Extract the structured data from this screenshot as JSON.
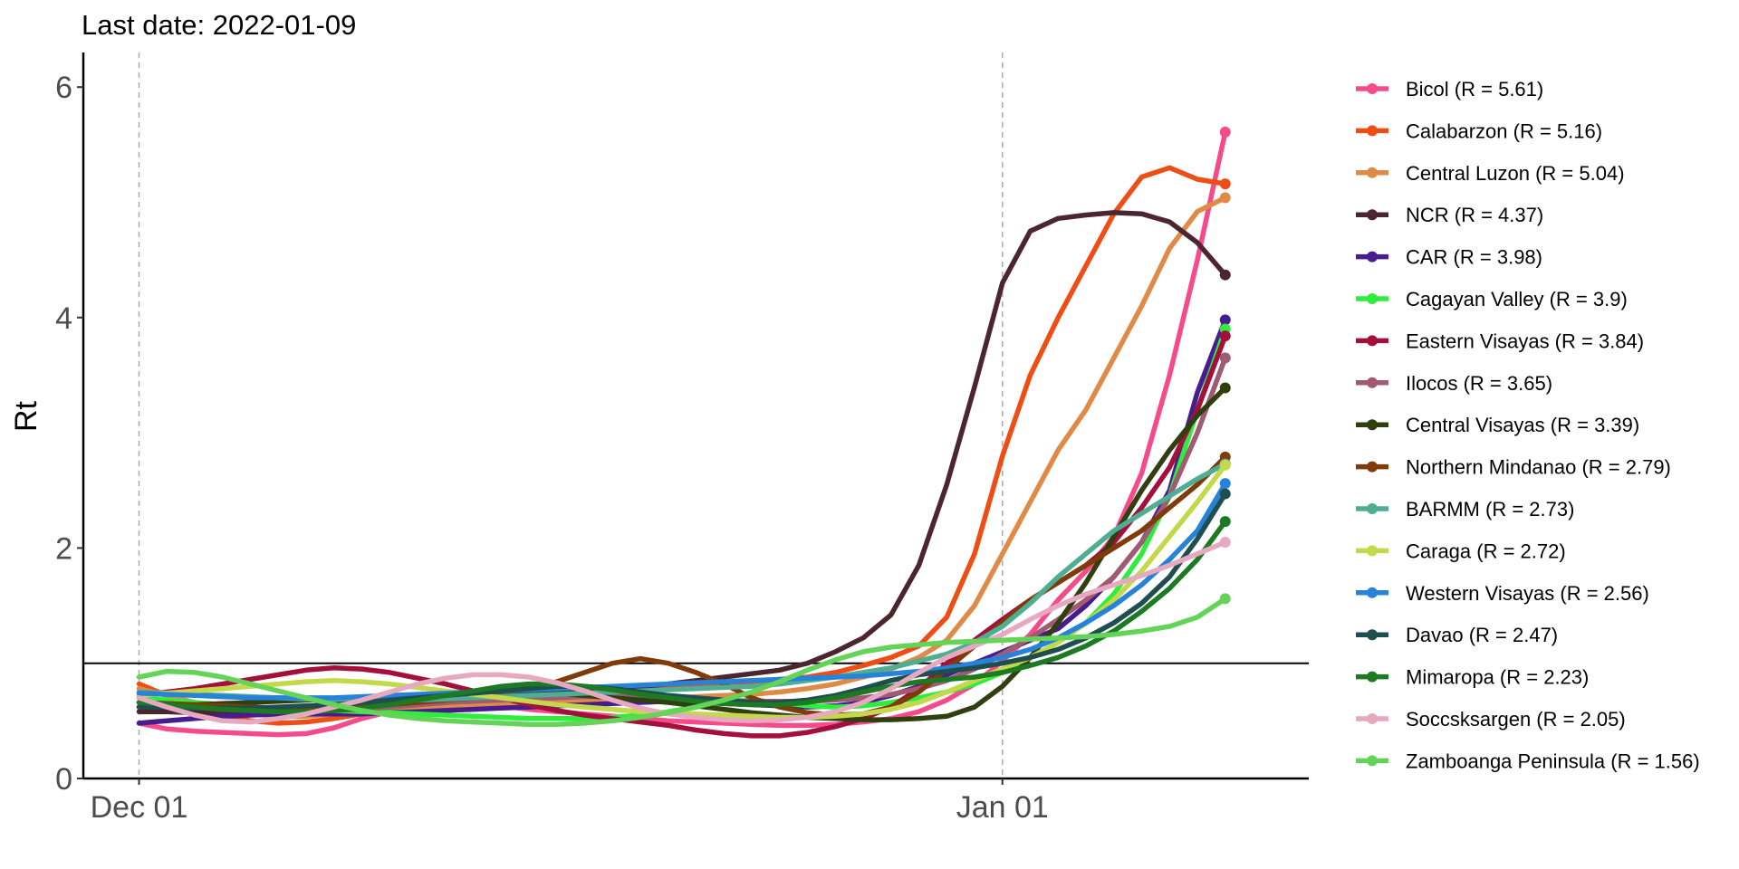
{
  "chart_data": {
    "type": "line",
    "title": "Last date: 2022-01-09",
    "ylabel": "Rt",
    "xlabel": "",
    "x_axis": {
      "start": "2021-11-29",
      "end": "2022-01-12",
      "ticks": [
        {
          "date": "2021-12-01",
          "label": "Dec 01"
        },
        {
          "date": "2022-01-01",
          "label": "Jan 01"
        }
      ],
      "dashed_vlines": [
        "2021-12-01",
        "2022-01-01"
      ]
    },
    "y_axis": {
      "range": [
        0,
        6.3
      ],
      "ticks": [
        0,
        2,
        4,
        6
      ]
    },
    "reference_line": 1,
    "grid": false,
    "legend_position": "right",
    "dates": [
      "2021-12-01",
      "2021-12-02",
      "2021-12-03",
      "2021-12-04",
      "2021-12-05",
      "2021-12-06",
      "2021-12-07",
      "2021-12-08",
      "2021-12-09",
      "2021-12-10",
      "2021-12-11",
      "2021-12-12",
      "2021-12-13",
      "2021-12-14",
      "2021-12-15",
      "2021-12-16",
      "2021-12-17",
      "2021-12-18",
      "2021-12-19",
      "2021-12-20",
      "2021-12-21",
      "2021-12-22",
      "2021-12-23",
      "2021-12-24",
      "2021-12-25",
      "2021-12-26",
      "2021-12-27",
      "2021-12-28",
      "2021-12-29",
      "2021-12-30",
      "2021-12-31",
      "2022-01-01",
      "2022-01-02",
      "2022-01-03",
      "2022-01-04",
      "2022-01-05",
      "2022-01-06",
      "2022-01-07",
      "2022-01-08",
      "2022-01-09"
    ],
    "series": [
      {
        "name": "Bicol (R = 5.61)",
        "color": "#F64B8A",
        "values": [
          0.48,
          0.43,
          0.41,
          0.4,
          0.39,
          0.38,
          0.39,
          0.44,
          0.52,
          0.58,
          0.62,
          0.64,
          0.65,
          0.63,
          0.6,
          0.58,
          0.56,
          0.54,
          0.52,
          0.5,
          0.49,
          0.48,
          0.47,
          0.46,
          0.46,
          0.47,
          0.49,
          0.52,
          0.58,
          0.68,
          0.82,
          1.02,
          1.25,
          1.55,
          1.8,
          2.1,
          2.65,
          3.5,
          4.5,
          5.61
        ]
      },
      {
        "name": "Calabarzon (R = 5.16)",
        "color": "#EE4E16",
        "values": [
          0.82,
          0.72,
          0.63,
          0.55,
          0.5,
          0.48,
          0.49,
          0.52,
          0.56,
          0.58,
          0.6,
          0.62,
          0.64,
          0.66,
          0.68,
          0.7,
          0.72,
          0.74,
          0.76,
          0.78,
          0.8,
          0.82,
          0.84,
          0.86,
          0.88,
          0.92,
          0.98,
          1.05,
          1.15,
          1.4,
          1.95,
          2.8,
          3.5,
          4.0,
          4.45,
          4.9,
          5.22,
          5.3,
          5.2,
          5.16
        ]
      },
      {
        "name": "Central Luzon (R = 5.04)",
        "color": "#E08A47",
        "values": [
          0.78,
          0.72,
          0.66,
          0.6,
          0.56,
          0.54,
          0.54,
          0.56,
          0.58,
          0.6,
          0.61,
          0.62,
          0.63,
          0.64,
          0.65,
          0.66,
          0.67,
          0.68,
          0.69,
          0.7,
          0.71,
          0.72,
          0.73,
          0.75,
          0.78,
          0.82,
          0.88,
          0.95,
          1.05,
          1.2,
          1.5,
          1.95,
          2.4,
          2.85,
          3.2,
          3.65,
          4.1,
          4.6,
          4.92,
          5.04
        ]
      },
      {
        "name": "NCR (R = 4.37)",
        "color": "#4B2631",
        "values": [
          0.58,
          0.58,
          0.57,
          0.57,
          0.57,
          0.58,
          0.58,
          0.59,
          0.6,
          0.62,
          0.64,
          0.66,
          0.68,
          0.7,
          0.72,
          0.74,
          0.76,
          0.78,
          0.8,
          0.82,
          0.85,
          0.88,
          0.91,
          0.94,
          1.0,
          1.1,
          1.22,
          1.42,
          1.85,
          2.55,
          3.4,
          4.3,
          4.75,
          4.86,
          4.89,
          4.91,
          4.9,
          4.83,
          4.65,
          4.37
        ]
      },
      {
        "name": "CAR (R = 3.98)",
        "color": "#461C8E",
        "values": [
          0.48,
          0.5,
          0.52,
          0.54,
          0.55,
          0.56,
          0.56,
          0.56,
          0.56,
          0.57,
          0.58,
          0.59,
          0.6,
          0.61,
          0.62,
          0.63,
          0.64,
          0.65,
          0.66,
          0.67,
          0.66,
          0.65,
          0.64,
          0.63,
          0.62,
          0.63,
          0.66,
          0.72,
          0.8,
          0.9,
          1.0,
          1.1,
          1.2,
          1.3,
          1.5,
          1.75,
          2.05,
          2.5,
          3.35,
          3.98
        ]
      },
      {
        "name": "Cagayan Valley (R = 3.9)",
        "color": "#2EED3C",
        "values": [
          0.7,
          0.68,
          0.66,
          0.64,
          0.62,
          0.61,
          0.6,
          0.59,
          0.58,
          0.57,
          0.56,
          0.55,
          0.54,
          0.53,
          0.52,
          0.52,
          0.52,
          0.53,
          0.55,
          0.58,
          0.62,
          0.66,
          0.68,
          0.66,
          0.63,
          0.62,
          0.63,
          0.66,
          0.7,
          0.75,
          0.82,
          0.92,
          1.05,
          1.18,
          1.35,
          1.6,
          1.95,
          2.45,
          3.2,
          3.9
        ]
      },
      {
        "name": "Eastern Visayas (R = 3.84)",
        "color": "#A2103B",
        "values": [
          0.72,
          0.75,
          0.78,
          0.82,
          0.86,
          0.9,
          0.94,
          0.96,
          0.95,
          0.92,
          0.87,
          0.82,
          0.76,
          0.7,
          0.64,
          0.59,
          0.55,
          0.52,
          0.49,
          0.46,
          0.42,
          0.39,
          0.37,
          0.37,
          0.4,
          0.45,
          0.52,
          0.62,
          0.78,
          1.0,
          1.2,
          1.38,
          1.55,
          1.7,
          1.85,
          2.05,
          2.35,
          2.7,
          3.2,
          3.84
        ]
      },
      {
        "name": "Ilocos (R = 3.65)",
        "color": "#A05B72",
        "values": [
          0.66,
          0.64,
          0.62,
          0.6,
          0.59,
          0.58,
          0.58,
          0.59,
          0.6,
          0.62,
          0.64,
          0.66,
          0.67,
          0.68,
          0.69,
          0.7,
          0.71,
          0.71,
          0.71,
          0.7,
          0.69,
          0.68,
          0.67,
          0.67,
          0.67,
          0.68,
          0.7,
          0.73,
          0.78,
          0.85,
          0.95,
          1.08,
          1.22,
          1.38,
          1.55,
          1.75,
          2.05,
          2.45,
          3.0,
          3.65
        ]
      },
      {
        "name": "Central Visayas (R = 3.39)",
        "color": "#2F3F10",
        "values": [
          0.62,
          0.63,
          0.64,
          0.65,
          0.66,
          0.67,
          0.68,
          0.69,
          0.7,
          0.71,
          0.72,
          0.73,
          0.74,
          0.75,
          0.75,
          0.74,
          0.72,
          0.7,
          0.68,
          0.66,
          0.63,
          0.6,
          0.57,
          0.55,
          0.53,
          0.52,
          0.51,
          0.51,
          0.52,
          0.54,
          0.62,
          0.8,
          1.05,
          1.35,
          1.7,
          2.1,
          2.5,
          2.85,
          3.15,
          3.39
        ]
      },
      {
        "name": "Northern Mindanao (R = 2.79)",
        "color": "#7F3C0A",
        "values": [
          0.66,
          0.65,
          0.64,
          0.63,
          0.62,
          0.61,
          0.61,
          0.61,
          0.62,
          0.64,
          0.66,
          0.68,
          0.7,
          0.74,
          0.78,
          0.84,
          0.92,
          1.0,
          1.04,
          1.0,
          0.92,
          0.82,
          0.7,
          0.62,
          0.57,
          0.55,
          0.56,
          0.62,
          0.75,
          0.95,
          1.15,
          1.35,
          1.55,
          1.7,
          1.85,
          2.0,
          2.15,
          2.35,
          2.55,
          2.79
        ]
      },
      {
        "name": "BARMM (R = 2.73)",
        "color": "#4FAD92",
        "values": [
          0.75,
          0.74,
          0.73,
          0.72,
          0.71,
          0.7,
          0.69,
          0.68,
          0.68,
          0.68,
          0.68,
          0.69,
          0.7,
          0.71,
          0.72,
          0.73,
          0.74,
          0.75,
          0.76,
          0.77,
          0.78,
          0.79,
          0.8,
          0.82,
          0.85,
          0.88,
          0.92,
          0.96,
          1.02,
          1.08,
          1.18,
          1.32,
          1.52,
          1.75,
          1.95,
          2.15,
          2.3,
          2.45,
          2.6,
          2.73
        ]
      },
      {
        "name": "Caraga (R = 2.72)",
        "color": "#C4D94A",
        "values": [
          0.72,
          0.74,
          0.76,
          0.78,
          0.8,
          0.82,
          0.84,
          0.85,
          0.84,
          0.82,
          0.79,
          0.76,
          0.73,
          0.7,
          0.67,
          0.64,
          0.62,
          0.6,
          0.58,
          0.57,
          0.56,
          0.55,
          0.54,
          0.53,
          0.53,
          0.54,
          0.56,
          0.6,
          0.66,
          0.75,
          0.85,
          0.95,
          1.05,
          1.18,
          1.35,
          1.55,
          1.8,
          2.1,
          2.4,
          2.72
        ]
      },
      {
        "name": "Western Visayas (R = 2.56)",
        "color": "#2783D9",
        "values": [
          0.74,
          0.73,
          0.72,
          0.71,
          0.7,
          0.7,
          0.7,
          0.7,
          0.71,
          0.72,
          0.73,
          0.74,
          0.75,
          0.76,
          0.77,
          0.78,
          0.79,
          0.8,
          0.81,
          0.82,
          0.83,
          0.84,
          0.85,
          0.86,
          0.87,
          0.88,
          0.89,
          0.91,
          0.93,
          0.96,
          1.0,
          1.05,
          1.12,
          1.22,
          1.35,
          1.5,
          1.68,
          1.9,
          2.15,
          2.56
        ]
      },
      {
        "name": "Davao (R = 2.47)",
        "color": "#1F4E4F",
        "values": [
          0.62,
          0.62,
          0.61,
          0.61,
          0.61,
          0.62,
          0.63,
          0.64,
          0.66,
          0.68,
          0.7,
          0.72,
          0.74,
          0.76,
          0.78,
          0.8,
          0.8,
          0.78,
          0.75,
          0.72,
          0.7,
          0.68,
          0.66,
          0.66,
          0.68,
          0.72,
          0.78,
          0.85,
          0.9,
          0.93,
          0.96,
          1.0,
          1.05,
          1.12,
          1.22,
          1.35,
          1.52,
          1.75,
          2.08,
          2.47
        ]
      },
      {
        "name": "Mimaropa (R = 2.23)",
        "color": "#1B7A22",
        "values": [
          0.66,
          0.64,
          0.62,
          0.6,
          0.59,
          0.58,
          0.58,
          0.59,
          0.61,
          0.64,
          0.68,
          0.72,
          0.76,
          0.8,
          0.82,
          0.82,
          0.8,
          0.77,
          0.73,
          0.7,
          0.67,
          0.65,
          0.64,
          0.64,
          0.66,
          0.7,
          0.75,
          0.8,
          0.84,
          0.86,
          0.88,
          0.92,
          0.98,
          1.05,
          1.15,
          1.28,
          1.45,
          1.65,
          1.9,
          2.23
        ]
      },
      {
        "name": "Soccsksargen (R = 2.05)",
        "color": "#E7A9C0",
        "values": [
          0.7,
          0.62,
          0.55,
          0.5,
          0.49,
          0.52,
          0.56,
          0.62,
          0.68,
          0.75,
          0.82,
          0.87,
          0.9,
          0.9,
          0.88,
          0.83,
          0.76,
          0.68,
          0.61,
          0.56,
          0.53,
          0.51,
          0.5,
          0.51,
          0.53,
          0.58,
          0.66,
          0.78,
          0.92,
          1.05,
          1.15,
          1.25,
          1.38,
          1.5,
          1.6,
          1.68,
          1.76,
          1.85,
          1.95,
          2.05
        ]
      },
      {
        "name": "Zamboanga Peninsula (R = 1.56)",
        "color": "#63D457",
        "values": [
          0.88,
          0.93,
          0.92,
          0.88,
          0.82,
          0.76,
          0.7,
          0.64,
          0.59,
          0.55,
          0.52,
          0.5,
          0.49,
          0.48,
          0.47,
          0.47,
          0.48,
          0.5,
          0.53,
          0.57,
          0.62,
          0.68,
          0.75,
          0.84,
          0.94,
          1.03,
          1.1,
          1.14,
          1.16,
          1.18,
          1.19,
          1.2,
          1.21,
          1.22,
          1.23,
          1.25,
          1.28,
          1.32,
          1.4,
          1.56
        ]
      }
    ]
  }
}
